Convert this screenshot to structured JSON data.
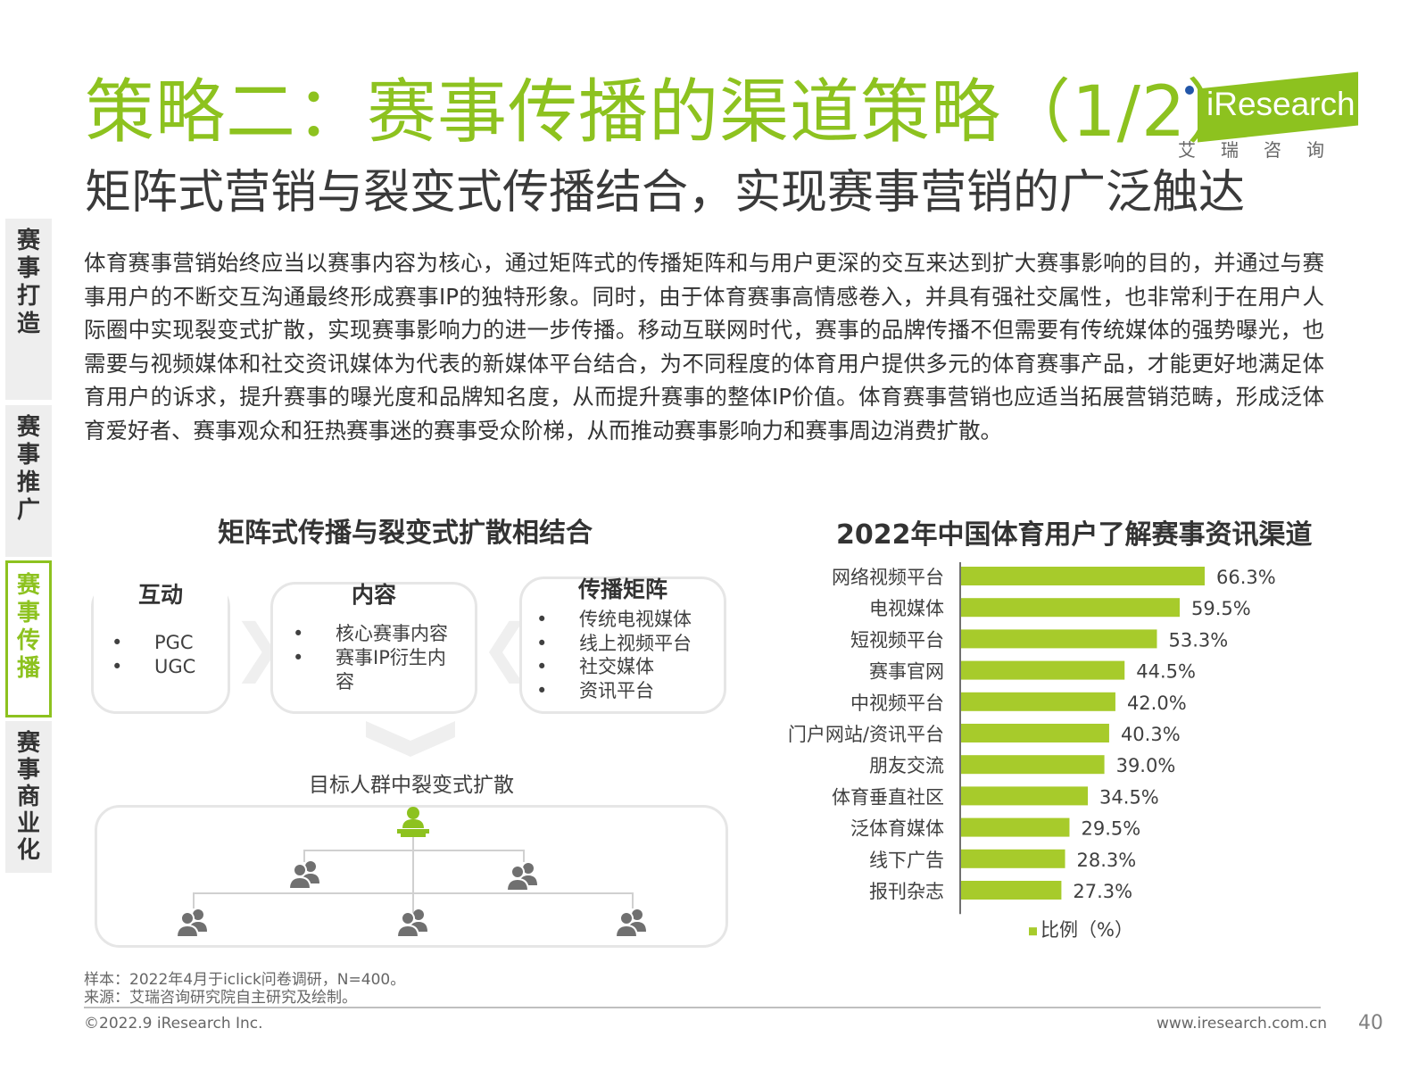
{
  "header": {
    "title": "策略二：赛事传播的渠道策略（1/2）",
    "subtitle": "矩阵式营销与裂变式传播结合，实现赛事营销的广泛触达"
  },
  "logo": {
    "brand": "iResearch",
    "cn": "艾瑞咨询"
  },
  "sidebar": {
    "items": [
      {
        "label": "赛事打造",
        "chars": [
          "赛",
          "事",
          "打",
          "造"
        ]
      },
      {
        "label": "赛事推广",
        "chars": [
          "赛",
          "事",
          "推",
          "广"
        ]
      },
      {
        "label": "赛事传播",
        "chars": [
          "赛",
          "事",
          "传",
          "播"
        ]
      },
      {
        "label": "赛事商业化",
        "chars": [
          "赛",
          "事",
          "商",
          "业",
          "化"
        ]
      }
    ]
  },
  "body": {
    "paragraph": "体育赛事营销始终应当以赛事内容为核心，通过矩阵式的传播矩阵和与用户更深的交互来达到扩大赛事影响的目的，并通过与赛事用户的不断交互沟通最终形成赛事IP的独特形象。同时，由于体育赛事高情感卷入，并具有强社交属性，也非常利于在用户人际圈中实现裂变式扩散，实现赛事影响力的进一步传播。移动互联网时代，赛事的品牌传播不但需要有传统媒体的强势曝光，也需要与视频媒体和社交资讯媒体为代表的新媒体平台结合，为不同程度的体育用户提供多元的体育赛事产品，才能更好地满足体育用户的诉求，提升赛事的曝光度和品牌知名度，从而提升赛事的整体IP价值。体育赛事营销也应适当拓展营销范畴，形成泛体育爱好者、赛事观众和狂热赛事迷的赛事受众阶梯，从而推动赛事影响力和赛事周边消费扩散。"
  },
  "diagram": {
    "title": "矩阵式传播与裂变式扩散相结合",
    "boxes": [
      {
        "title": "互动",
        "items": [
          "PGC",
          "UGC"
        ]
      },
      {
        "title": "内容",
        "items": [
          "核心赛事内容",
          "赛事IP衍生内容"
        ]
      },
      {
        "title": "传播矩阵",
        "items": [
          "传统电视媒体",
          "线上视频平台",
          "社交媒体",
          "资讯平台"
        ]
      }
    ],
    "spread_label": "目标人群中裂变式扩散"
  },
  "chart_data": {
    "type": "bar",
    "orientation": "horizontal",
    "title": "2022年中国体育用户了解赛事资讯渠道",
    "categories": [
      "网络视频平台",
      "电视媒体",
      "短视频平台",
      "赛事官网",
      "中视频平台",
      "门户网站/资讯平台",
      "朋友交流",
      "体育垂直社区",
      "泛体育媒体",
      "线下广告",
      "报刊杂志"
    ],
    "values": [
      66.3,
      59.5,
      53.3,
      44.5,
      42.0,
      40.3,
      39.0,
      34.5,
      29.5,
      28.3,
      27.3
    ],
    "value_labels": [
      "66.3%",
      "59.5%",
      "53.3%",
      "44.5%",
      "42.0%",
      "40.3%",
      "39.0%",
      "34.5%",
      "29.5%",
      "28.3%",
      "27.3%"
    ],
    "legend": "比例（%）",
    "legend_position": "bottom",
    "xlim": [
      0,
      100
    ],
    "color": "#a7cb2b"
  },
  "footer": {
    "sample": "样本：2022年4月于iclick问卷调研，N=400。",
    "source": "来源：艾瑞咨询研究院自主研究及绘制。",
    "copyright": "©2022.9 iResearch Inc.",
    "website": "www.iresearch.com.cn",
    "page": "40"
  }
}
